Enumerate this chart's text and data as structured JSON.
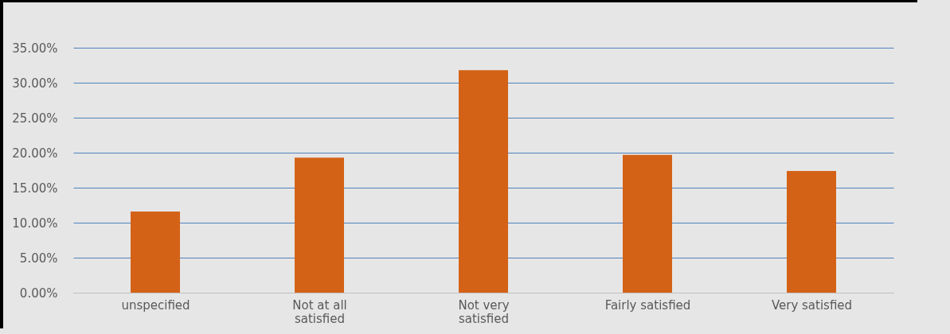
{
  "chart_data": {
    "type": "bar",
    "categories": [
      "unspecified",
      "Not at all satisfied",
      "Not very satisfied",
      "Fairly satisfied",
      "Very satisfied"
    ],
    "values": [
      11.6,
      19.3,
      31.8,
      19.7,
      17.4
    ],
    "color": "#d46216",
    "ylim": [
      0,
      35
    ],
    "yticks": [
      {
        "value": 0,
        "label": "0.00%"
      },
      {
        "value": 5,
        "label": "5.00%"
      },
      {
        "value": 10,
        "label": "10.00%"
      },
      {
        "value": 15,
        "label": "15.00%"
      },
      {
        "value": 20,
        "label": "20.00%"
      },
      {
        "value": 25,
        "label": "25.00%"
      },
      {
        "value": 30,
        "label": "30.00%"
      },
      {
        "value": 35,
        "label": "35.00%"
      }
    ],
    "grid": "y"
  }
}
